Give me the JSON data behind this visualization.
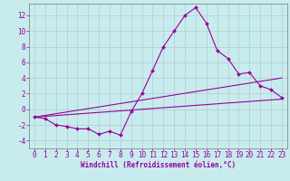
{
  "xlabel": "Windchill (Refroidissement éolien,°C)",
  "bg_color": "#c8ecee",
  "line_color": "#990099",
  "grid_color": "#b0ccd0",
  "xlim": [
    -0.5,
    23.5
  ],
  "ylim": [
    -5,
    13.5
  ],
  "xticks": [
    0,
    1,
    2,
    3,
    4,
    5,
    6,
    7,
    8,
    9,
    10,
    11,
    12,
    13,
    14,
    15,
    16,
    17,
    18,
    19,
    20,
    21,
    22,
    23
  ],
  "yticks": [
    -4,
    -2,
    0,
    2,
    4,
    6,
    8,
    10,
    12
  ],
  "main_line": {
    "x": [
      0,
      1,
      2,
      3,
      4,
      5,
      6,
      7,
      8,
      9,
      10,
      11,
      12,
      13,
      14,
      15,
      16,
      17,
      18,
      19,
      20,
      21,
      22,
      23
    ],
    "y": [
      -1,
      -1.2,
      -2.0,
      -2.2,
      -2.5,
      -2.5,
      -3.2,
      -2.8,
      -3.3,
      -0.3,
      2.0,
      5.0,
      8.0,
      10.0,
      12.0,
      13.0,
      11.0,
      7.5,
      6.5,
      4.5,
      4.7,
      3.0,
      2.5,
      1.5
    ]
  },
  "line2": {
    "x": [
      0,
      23
    ],
    "y": [
      -1.0,
      4.0
    ]
  },
  "line3": {
    "x": [
      0,
      23
    ],
    "y": [
      -1.0,
      1.3
    ]
  },
  "xlabel_fontsize": 5.5,
  "tick_fontsize": 5.5
}
